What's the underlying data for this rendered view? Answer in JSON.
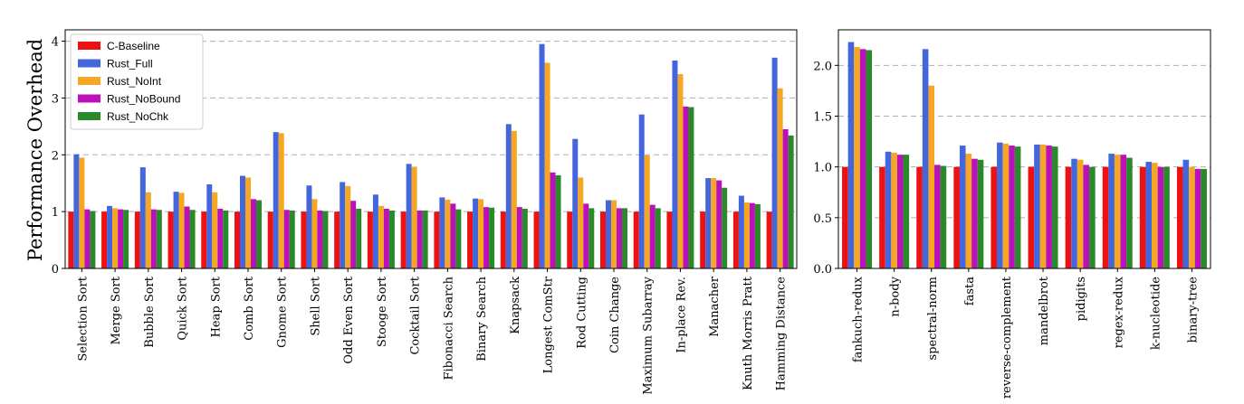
{
  "series_colors": {
    "C-Baseline": "#ee1111",
    "Rust_Full": "#4466dd",
    "Rust_NoInt": "#f5a623",
    "Rust_NoBound": "#bb11bb",
    "Rust_NoChk": "#2a8a2a"
  },
  "chart_data": [
    {
      "type": "bar",
      "ylabel": "Performance Overhead",
      "ylim": [
        0,
        4.2
      ],
      "yticks": [
        0,
        1,
        2,
        3,
        4
      ],
      "grid": "horizontal dashed",
      "legend_position": "top-left",
      "categories": [
        "Selection Sort",
        "Merge Sort",
        "Bubble Sort",
        "Quick Sort",
        "Heap Sort",
        "Comb Sort",
        "Gnome Sort",
        "Shell Sort",
        "Odd Even Sort",
        "Stooge Sort",
        "Cocktail Sort",
        "Fibonacci Search",
        "Binary Search",
        "Knapsack",
        "Longest ComStr",
        "Rod Cutting",
        "Coin Change",
        "Maximum Subarray",
        "In-place Rev.",
        "Manacher",
        "Knuth Morris Pratt",
        "Hamming Distance"
      ],
      "series": [
        {
          "name": "C-Baseline",
          "values": [
            1,
            1,
            1,
            1,
            1,
            1,
            1,
            1,
            1,
            1,
            1,
            1,
            1,
            1,
            1,
            1,
            1,
            1,
            1,
            1,
            1,
            1
          ]
        },
        {
          "name": "Rust_Full",
          "values": [
            2.01,
            1.1,
            1.78,
            1.35,
            1.48,
            1.63,
            2.4,
            1.46,
            1.52,
            1.3,
            1.84,
            1.25,
            1.23,
            2.54,
            3.95,
            2.28,
            1.2,
            2.71,
            3.66,
            1.59,
            1.28,
            3.71
          ]
        },
        {
          "name": "Rust_NoInt",
          "values": [
            1.95,
            1.06,
            1.34,
            1.33,
            1.34,
            1.6,
            2.38,
            1.22,
            1.45,
            1.1,
            1.79,
            1.21,
            1.22,
            2.42,
            3.62,
            1.6,
            1.2,
            1.99,
            3.42,
            1.59,
            1.16,
            3.17
          ]
        },
        {
          "name": "Rust_NoBound",
          "values": [
            1.04,
            1.04,
            1.04,
            1.09,
            1.05,
            1.22,
            1.03,
            1.02,
            1.19,
            1.05,
            1.02,
            1.14,
            1.08,
            1.08,
            1.69,
            1.14,
            1.06,
            1.12,
            2.85,
            1.55,
            1.15,
            2.45
          ]
        },
        {
          "name": "Rust_NoChk",
          "values": [
            1.01,
            1.03,
            1.03,
            1.03,
            1.02,
            1.2,
            1.02,
            1.01,
            1.05,
            1.02,
            1.02,
            1.04,
            1.07,
            1.05,
            1.64,
            1.06,
            1.06,
            1.06,
            2.84,
            1.42,
            1.13,
            2.34
          ]
        }
      ]
    },
    {
      "type": "bar",
      "ylim": [
        0,
        2.35
      ],
      "yticks": [
        "0.0",
        "0.5",
        "1.0",
        "1.5",
        "2.0"
      ],
      "grid": "horizontal dashed",
      "categories": [
        "fankuch-redux",
        "n-body",
        "spectral-norm",
        "fasta",
        "reverse-complement",
        "mandelbrot",
        "pidigits",
        "regex-redux",
        "k-nucleotide",
        "binary-tree"
      ],
      "series": [
        {
          "name": "C-Baseline",
          "values": [
            1,
            1,
            1,
            1,
            1,
            1,
            1,
            1,
            1,
            1
          ]
        },
        {
          "name": "Rust_Full",
          "values": [
            2.23,
            1.15,
            2.16,
            1.21,
            1.24,
            1.22,
            1.08,
            1.13,
            1.05,
            1.07
          ]
        },
        {
          "name": "Rust_NoInt",
          "values": [
            2.18,
            1.14,
            1.8,
            1.13,
            1.23,
            1.22,
            1.07,
            1.12,
            1.04,
            1.0
          ]
        },
        {
          "name": "Rust_NoBound",
          "values": [
            2.16,
            1.12,
            1.02,
            1.08,
            1.21,
            1.21,
            1.02,
            1.12,
            1.0,
            0.98
          ]
        },
        {
          "name": "Rust_NoChk",
          "values": [
            2.15,
            1.12,
            1.01,
            1.07,
            1.2,
            1.2,
            1.0,
            1.09,
            1.0,
            0.98
          ]
        }
      ]
    }
  ]
}
